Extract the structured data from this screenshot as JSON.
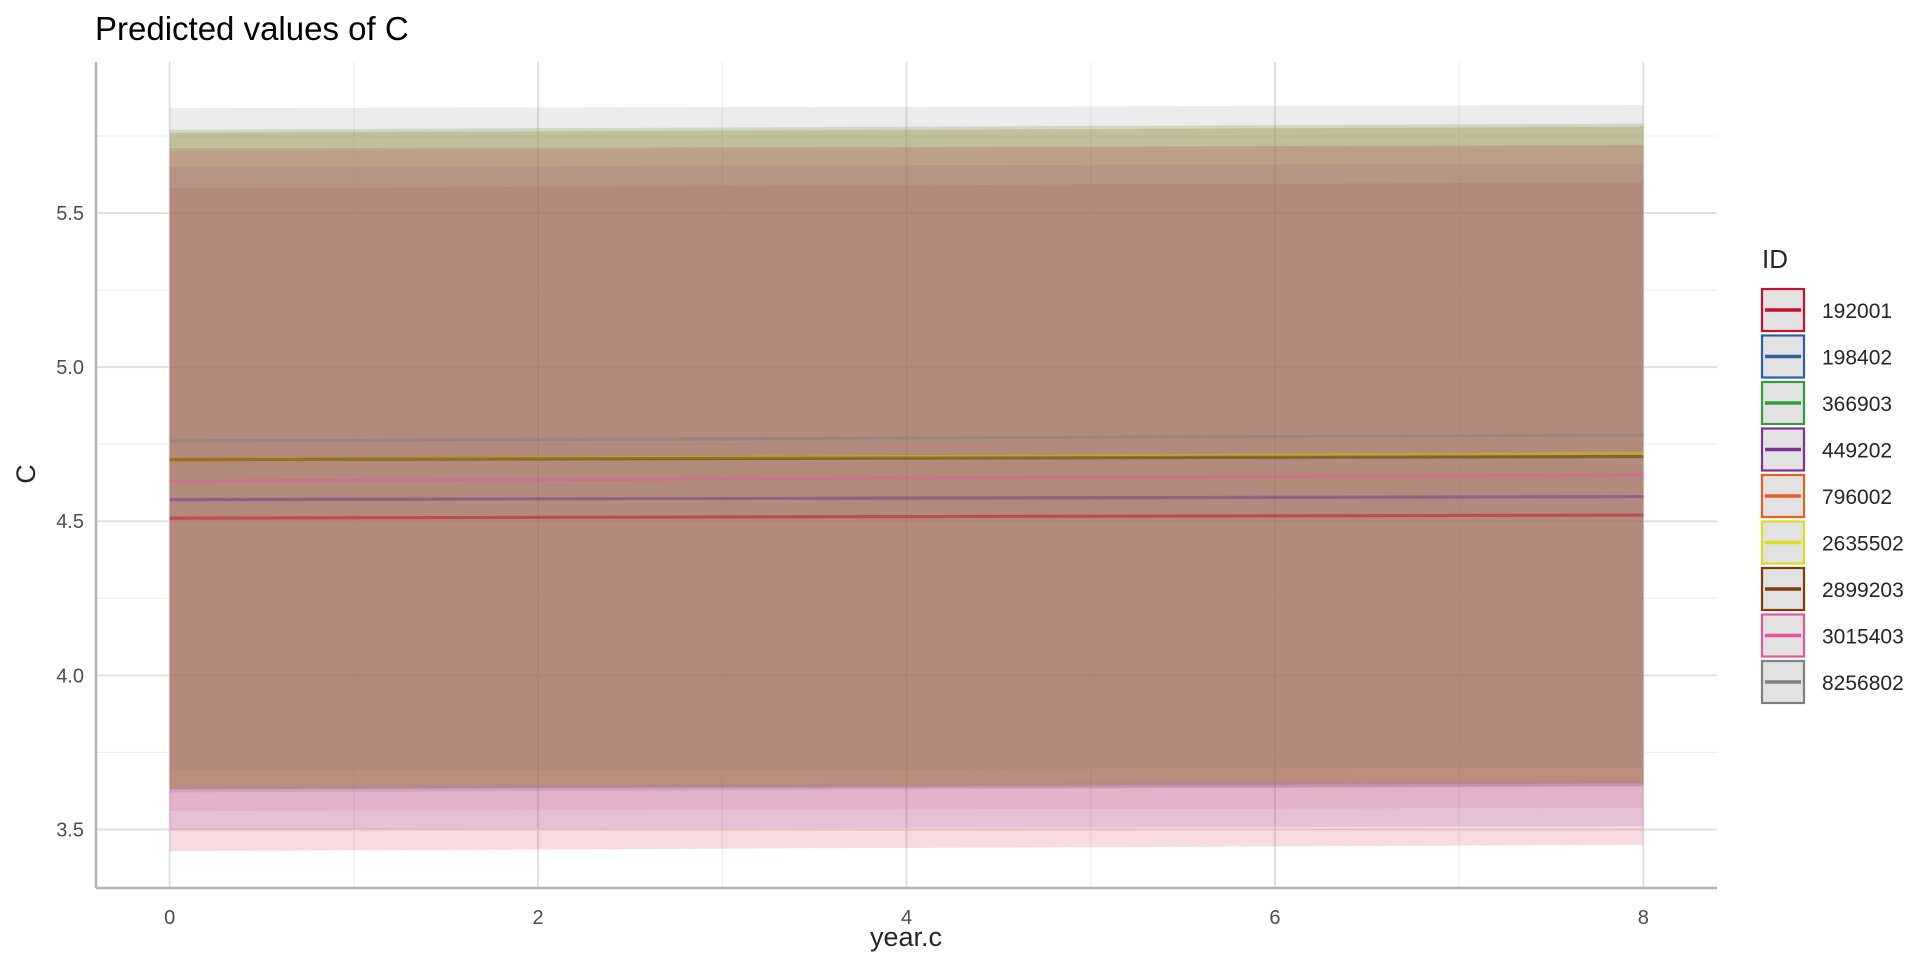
{
  "chart_data": {
    "type": "line",
    "title": "Predicted values of C",
    "xlabel": "year.c",
    "ylabel": "C",
    "xlim": [
      -0.4,
      8.4
    ],
    "ylim": [
      3.31,
      5.99
    ],
    "x_ticks": [
      0,
      2,
      4,
      6,
      8
    ],
    "x_tick_labels": [
      "0",
      "2",
      "4",
      "6",
      "8"
    ],
    "y_ticks": [
      3.5,
      4.0,
      4.5,
      5.0,
      5.5
    ],
    "y_tick_labels": [
      "3.5",
      "4.0",
      "4.5",
      "5.0",
      "5.5"
    ],
    "grid": true,
    "legend": {
      "title": "ID",
      "position": "right"
    },
    "x": [
      0,
      8
    ],
    "series": [
      {
        "name": "192001",
        "color": "#c8102e",
        "values": [
          4.51,
          4.52
        ],
        "ci_lower": [
          3.43,
          3.45
        ],
        "ci_upper": [
          5.58,
          5.6
        ]
      },
      {
        "name": "198402",
        "color": "#2e5fa3",
        "values": [
          4.7,
          4.72
        ],
        "ci_lower": [
          3.62,
          3.64
        ],
        "ci_upper": [
          5.77,
          5.79
        ]
      },
      {
        "name": "366903",
        "color": "#2e9d3a",
        "values": [
          4.7,
          4.71
        ],
        "ci_lower": [
          3.63,
          3.65
        ],
        "ci_upper": [
          5.76,
          5.78
        ]
      },
      {
        "name": "449202",
        "color": "#7b3294",
        "values": [
          4.57,
          4.58
        ],
        "ci_lower": [
          3.5,
          3.51
        ],
        "ci_upper": [
          5.65,
          5.66
        ]
      },
      {
        "name": "796002",
        "color": "#e8601c",
        "values": [
          4.7,
          4.72
        ],
        "ci_lower": [
          3.63,
          3.65
        ],
        "ci_upper": [
          5.76,
          5.78
        ]
      },
      {
        "name": "2635502",
        "color": "#e0dc1c",
        "values": [
          4.7,
          4.72
        ],
        "ci_lower": [
          3.64,
          3.66
        ],
        "ci_upper": [
          5.77,
          5.79
        ]
      },
      {
        "name": "2899203",
        "color": "#7f3b08",
        "values": [
          4.7,
          4.71
        ],
        "ci_lower": [
          3.63,
          3.64
        ],
        "ci_upper": [
          5.71,
          5.72
        ]
      },
      {
        "name": "3015403",
        "color": "#e7559d",
        "values": [
          4.63,
          4.65
        ],
        "ci_lower": [
          3.56,
          3.57
        ],
        "ci_upper": [
          5.7,
          5.72
        ]
      },
      {
        "name": "8256802",
        "color": "#7f7f7f",
        "values": [
          4.76,
          4.78
        ],
        "ci_lower": [
          3.69,
          3.7
        ],
        "ci_upper": [
          5.84,
          5.85
        ]
      }
    ]
  }
}
